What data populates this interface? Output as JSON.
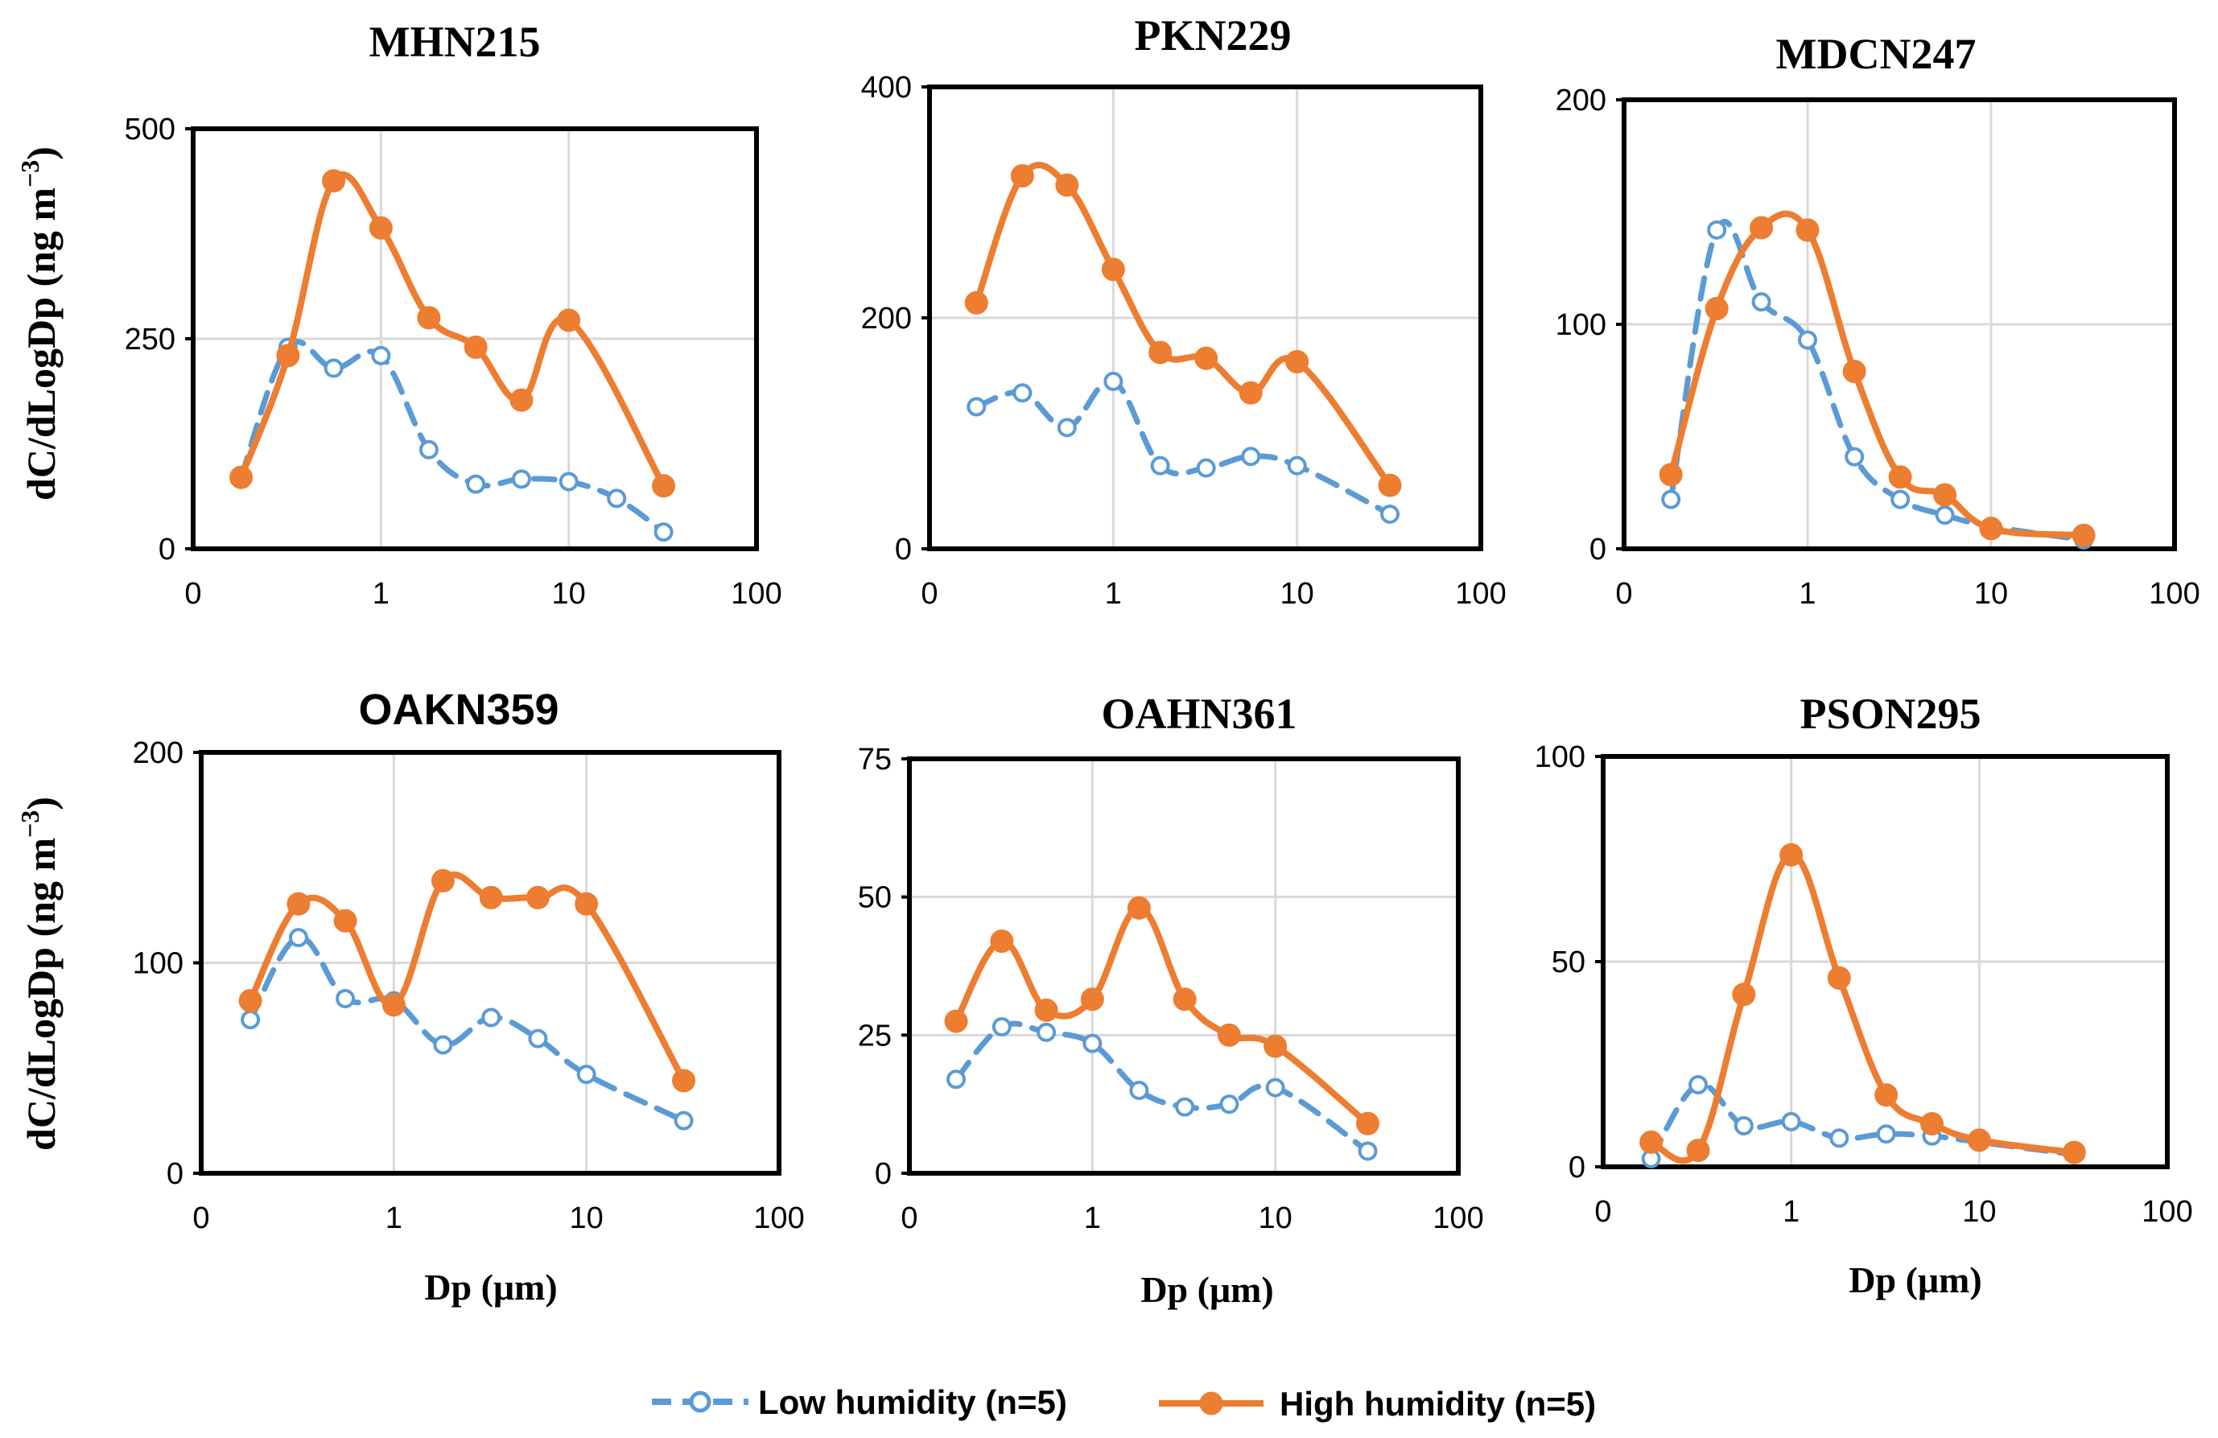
{
  "figure": {
    "ylabel": "dC/dLogDp  (ng m",
    "ylabel_sup": "−3",
    "ylabel_close": ")",
    "xlabel": "Dp (μm)"
  },
  "legend": {
    "placement": "bottom-center",
    "items": [
      {
        "label": "Low humidity (n=5)",
        "color": "#5b9bd5",
        "style": "dashed",
        "marker": "open-circle"
      },
      {
        "label": "High humidity (n=5)",
        "color": "#ed7d31",
        "style": "solid",
        "marker": "filled-circle"
      }
    ]
  },
  "chart_data": [
    {
      "type": "line",
      "title": "MHN215",
      "xscale": "log",
      "x_ticks": [
        "0",
        "1",
        "10",
        "100"
      ],
      "ylim": [
        0,
        500
      ],
      "y_ticks": [
        0,
        250,
        500
      ],
      "grid": true,
      "series": [
        {
          "name": "Low humidity (n=5)",
          "x": [
            0.18,
            0.32,
            0.56,
            1.0,
            1.8,
            3.2,
            5.6,
            10.0,
            18.0,
            32.0
          ],
          "y": [
            85,
            240,
            215,
            230,
            118,
            77,
            83,
            80,
            60,
            20
          ]
        },
        {
          "name": "High humidity (n=5)",
          "x": [
            0.18,
            0.32,
            0.56,
            1.0,
            1.8,
            3.2,
            5.6,
            10.0,
            32.0
          ],
          "y": [
            85,
            230,
            438,
            382,
            275,
            240,
            177,
            272,
            75
          ]
        }
      ]
    },
    {
      "type": "line",
      "title": "PKN229",
      "xscale": "log",
      "x_ticks": [
        "0",
        "1",
        "10",
        "100"
      ],
      "ylim": [
        0,
        400
      ],
      "y_ticks": [
        0,
        200,
        400
      ],
      "grid": true,
      "series": [
        {
          "name": "Low humidity (n=5)",
          "x": [
            0.18,
            0.32,
            0.56,
            1.0,
            1.8,
            3.2,
            5.6,
            10.0,
            32.0
          ],
          "y": [
            123,
            135,
            105,
            145,
            72,
            70,
            80,
            72,
            30
          ]
        },
        {
          "name": "High humidity (n=5)",
          "x": [
            0.18,
            0.32,
            0.56,
            1.0,
            1.8,
            3.2,
            5.6,
            10.0,
            32.0
          ],
          "y": [
            213,
            323,
            315,
            242,
            170,
            165,
            135,
            162,
            55
          ]
        }
      ]
    },
    {
      "type": "line",
      "title": "MDCN247",
      "xscale": "log",
      "x_ticks": [
        "0",
        "1",
        "10",
        "100"
      ],
      "ylim": [
        0,
        200
      ],
      "y_ticks": [
        0,
        100,
        200
      ],
      "grid": true,
      "series": [
        {
          "name": "Low humidity (n=5)",
          "x": [
            0.18,
            0.32,
            0.56,
            1.0,
            1.8,
            3.2,
            5.6,
            10.0,
            32.0
          ],
          "y": [
            22,
            142,
            110,
            93,
            41,
            22,
            15,
            10,
            4
          ]
        },
        {
          "name": "High humidity (n=5)",
          "x": [
            0.18,
            0.32,
            0.56,
            1.0,
            1.8,
            3.2,
            5.6,
            10.0,
            32.0
          ],
          "y": [
            33,
            107,
            143,
            142,
            79,
            32,
            24,
            9,
            6
          ]
        }
      ]
    },
    {
      "type": "line",
      "title": "OAKN359",
      "xscale": "log",
      "x_ticks": [
        "0",
        "1",
        "10",
        "100"
      ],
      "ylim": [
        0,
        200
      ],
      "y_ticks": [
        0,
        100,
        200
      ],
      "grid": true,
      "series": [
        {
          "name": "Low humidity (n=5)",
          "x": [
            0.18,
            0.32,
            0.56,
            1.0,
            1.8,
            3.2,
            5.6,
            10.0,
            32.0
          ],
          "y": [
            73,
            112,
            83,
            82,
            61,
            74,
            64,
            47,
            25
          ]
        },
        {
          "name": "High humidity (n=5)",
          "x": [
            0.18,
            0.32,
            0.56,
            1.0,
            1.8,
            3.2,
            5.6,
            10.0,
            32.0
          ],
          "y": [
            82,
            128,
            120,
            80,
            139,
            131,
            131,
            128,
            44
          ]
        }
      ]
    },
    {
      "type": "line",
      "title": "OAHN361",
      "xscale": "log",
      "x_ticks": [
        "0",
        "1",
        "10",
        "100"
      ],
      "ylim": [
        0,
        75
      ],
      "y_ticks": [
        0,
        25,
        50,
        75
      ],
      "grid": true,
      "series": [
        {
          "name": "Low humidity (n=5)",
          "x": [
            0.18,
            0.32,
            0.56,
            1.0,
            1.8,
            3.2,
            5.6,
            10.0,
            32.0
          ],
          "y": [
            17,
            26.5,
            25.5,
            23.5,
            15,
            12,
            12.5,
            15.5,
            4
          ]
        },
        {
          "name": "High humidity (n=5)",
          "x": [
            0.18,
            0.32,
            0.56,
            1.0,
            1.8,
            3.2,
            5.6,
            10.0,
            32.0
          ],
          "y": [
            27.5,
            42,
            29.5,
            31.5,
            48,
            31.5,
            25,
            23,
            9
          ]
        }
      ]
    },
    {
      "type": "line",
      "title": "PSON295",
      "xscale": "log",
      "x_ticks": [
        "0",
        "1",
        "10",
        "100"
      ],
      "ylim": [
        0,
        100
      ],
      "y_ticks": [
        0,
        50,
        100
      ],
      "grid": true,
      "series": [
        {
          "name": "Low humidity (n=5)",
          "x": [
            0.18,
            0.32,
            0.56,
            1.0,
            1.8,
            3.2,
            5.6,
            10.0,
            32.0
          ],
          "y": [
            2,
            20,
            10,
            11,
            7,
            8,
            7.5,
            6,
            3
          ]
        },
        {
          "name": "High humidity (n=5)",
          "x": [
            0.18,
            0.32,
            0.56,
            1.0,
            1.8,
            3.2,
            5.6,
            10.0,
            32.0
          ],
          "y": [
            6,
            4,
            42,
            76,
            46,
            17.5,
            10.5,
            6.5,
            3.5
          ]
        }
      ]
    }
  ]
}
